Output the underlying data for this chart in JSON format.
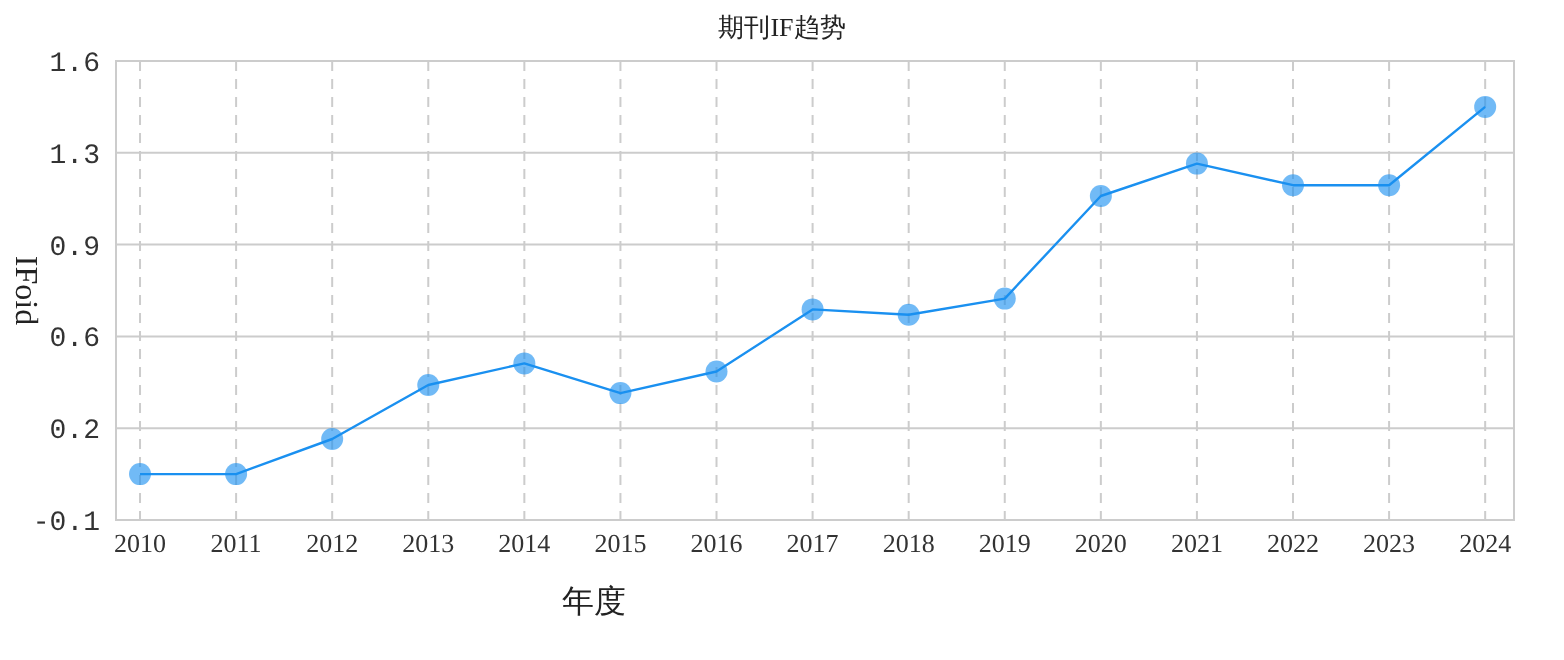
{
  "chart_data": {
    "type": "line",
    "title": "期刊IF趋势",
    "xlabel": "年度",
    "ylabel": "IFoid",
    "categories": [
      "2010",
      "2011",
      "2012",
      "2013",
      "2014",
      "2015",
      "2016",
      "2017",
      "2018",
      "2019",
      "2020",
      "2021",
      "2022",
      "2023",
      "2024"
    ],
    "series": [
      {
        "color": "#1a90f0",
        "values": [
          0.07,
          0.07,
          0.2,
          0.4,
          0.48,
          0.37,
          0.45,
          0.68,
          0.66,
          0.72,
          1.1,
          1.22,
          1.14,
          1.14,
          1.43
        ]
      }
    ],
    "ylim": [
      -0.1,
      1.6
    ],
    "yticks": [
      -0.1,
      {
        "value": 0.24,
        "label": "0.2"
      },
      {
        "value": 0.58,
        "label": "0.6"
      },
      {
        "value": 0.92,
        "label": "0.9"
      },
      {
        "value": 1.26,
        "label": "1.3"
      },
      1.6
    ],
    "grid": true,
    "marker": "circle",
    "line_style": "solid"
  }
}
